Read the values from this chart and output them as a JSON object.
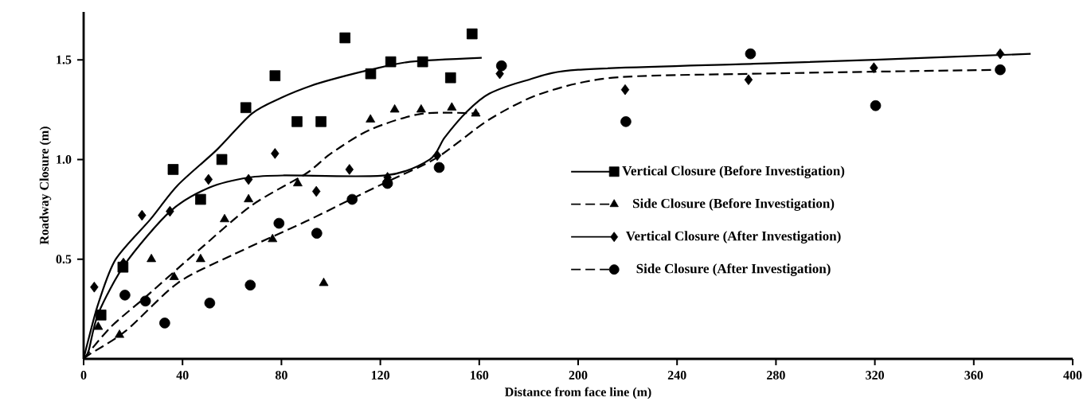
{
  "chart_data": {
    "type": "scatter",
    "xlabel": "Distance from face line (m)",
    "ylabel": "Roadway Closure (m)",
    "xlim": [
      0,
      400
    ],
    "ylim": [
      0,
      1.74
    ],
    "xticks": [
      0,
      40,
      80,
      120,
      160,
      200,
      240,
      280,
      320,
      360,
      400
    ],
    "yticks": [
      0.5,
      {
        "value": 1.0,
        "label": "1.0"
      },
      1.5
    ],
    "grid": false,
    "legend": "right",
    "series": [
      {
        "name": "Vertical Closure (Before Investigation)",
        "type": "scatter",
        "marker": "square",
        "line_style": "solid",
        "color": "#000000",
        "x": [
          7,
          15.9,
          36.2,
          47.3,
          55.9,
          65.6,
          77.4,
          86.3,
          96,
          105.7,
          116.1,
          124.2,
          137.1,
          148.4,
          157.1
        ],
        "values": [
          0.22,
          0.46,
          0.95,
          0.8,
          1.0,
          1.26,
          1.42,
          1.19,
          1.19,
          1.61,
          1.43,
          1.49,
          1.49,
          1.41,
          1.63
        ]
      },
      {
        "name": "Side Closure (Before Investigation)",
        "type": "scatter",
        "marker": "triangle",
        "line_style": "dashed",
        "color": "#000000",
        "x": [
          5.9,
          14.5,
          27.4,
          36.6,
          47.3,
          57,
          66.7,
          76.4,
          86.6,
          97.1,
          116,
          125.8,
          136.5,
          148.9,
          158.6
        ],
        "values": [
          0.16,
          0.12,
          0.5,
          0.41,
          0.5,
          0.7,
          0.8,
          0.6,
          0.88,
          0.38,
          1.2,
          1.25,
          1.25,
          1.26,
          1.23
        ]
      },
      {
        "name": "Vertical Closure (After Investigation)",
        "type": "scatter",
        "marker": "diamond",
        "line_style": "solid",
        "color": "#000000",
        "x": [
          4.3,
          16.1,
          23.6,
          34.9,
          50.5,
          66.7,
          77.4,
          94.1,
          107.5,
          122.9,
          143,
          168.3,
          219,
          268.9,
          319.6,
          370.7
        ],
        "values": [
          0.36,
          0.48,
          0.72,
          0.74,
          0.9,
          0.9,
          1.03,
          0.84,
          0.95,
          0.91,
          1.02,
          1.43,
          1.35,
          1.4,
          1.46,
          1.53
        ]
      },
      {
        "name": "Side Closure (After Investigation)",
        "type": "scatter",
        "marker": "circle",
        "line_style": "dashed",
        "color": "#000000",
        "x": [
          16.7,
          25,
          32.8,
          51,
          67.4,
          79,
          94.3,
          108.6,
          122.9,
          143.8,
          169,
          219.3,
          269.7,
          320.3,
          370.7
        ],
        "values": [
          0.32,
          0.29,
          0.18,
          0.28,
          0.37,
          0.68,
          0.63,
          0.8,
          0.88,
          0.96,
          1.47,
          1.19,
          1.53,
          1.27,
          1.45
        ]
      },
      {
        "type": "line",
        "line_style": "solid",
        "color": "#000000",
        "x": [
          0,
          2,
          6,
          13,
          27,
          38,
          54,
          68,
          80,
          92,
          103,
          116,
          132,
          161
        ],
        "values": [
          0,
          0.1,
          0.28,
          0.5,
          0.7,
          0.87,
          1.05,
          1.23,
          1.31,
          1.37,
          1.41,
          1.45,
          1.49,
          1.51
        ]
      },
      {
        "type": "line",
        "line_style": "dashed",
        "color": "#000000",
        "x": [
          0,
          11,
          25,
          47,
          68,
          90,
          100,
          116,
          137,
          160
        ],
        "values": [
          0,
          0.16,
          0.31,
          0.55,
          0.77,
          0.93,
          1.03,
          1.15,
          1.23,
          1.23
        ]
      },
      {
        "type": "line",
        "line_style": "solid",
        "color": "#000000",
        "x": [
          0,
          2,
          6,
          17,
          35,
          51,
          67,
          81,
          122,
          140,
          146,
          155,
          164,
          180,
          200,
          271,
          320,
          383
        ],
        "values": [
          0,
          0.04,
          0.23,
          0.48,
          0.74,
          0.86,
          0.91,
          0.92,
          0.92,
          1.0,
          1.11,
          1.24,
          1.33,
          1.4,
          1.45,
          1.48,
          1.5,
          1.53
        ]
      },
      {
        "type": "line",
        "line_style": "dashed",
        "color": "#000000",
        "x": [
          0,
          2,
          17,
          38,
          60,
          90,
          108,
          123,
          143,
          164,
          185,
          214,
          271,
          371
        ],
        "values": [
          0,
          0.02,
          0.14,
          0.38,
          0.52,
          0.69,
          0.8,
          0.89,
          1.01,
          1.2,
          1.33,
          1.41,
          1.43,
          1.45
        ]
      }
    ]
  }
}
